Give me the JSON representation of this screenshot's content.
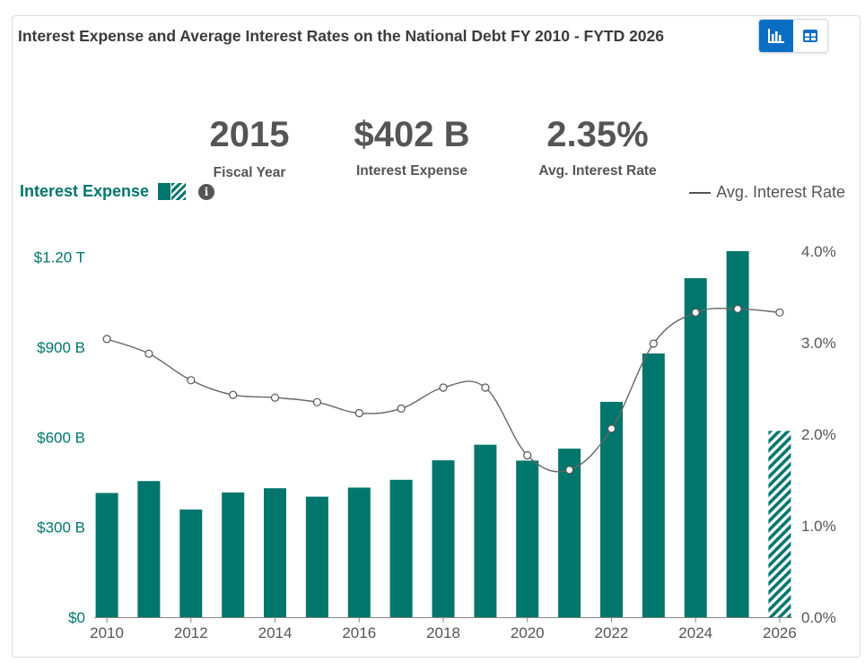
{
  "header": {
    "title": "Interest Expense and Average Interest Rates on the National Debt FY 2010 - FYTD 2026",
    "view_toggle": [
      {
        "icon": "bar-chart-icon",
        "active": true
      },
      {
        "icon": "table-icon",
        "active": false
      }
    ]
  },
  "summary": {
    "year_value": "2015",
    "year_label": "Fiscal Year",
    "expense_value": "$402 B",
    "expense_label": "Interest Expense",
    "rate_value": "2.35%",
    "rate_label": "Avg. Interest Rate"
  },
  "legend": {
    "bars_label": "Interest Expense",
    "line_label": "Avg. Interest Rate",
    "info_icon": "info-icon"
  },
  "colors": {
    "bar": "#00766c",
    "line": "#666666",
    "left_axis_text": "#00766c",
    "right_axis_text": "#555555"
  },
  "chart_data": {
    "type": "bar",
    "x": [
      2010,
      2011,
      2012,
      2013,
      2014,
      2015,
      2016,
      2017,
      2018,
      2019,
      2020,
      2021,
      2022,
      2023,
      2024,
      2025,
      2026
    ],
    "x_tick_labels": [
      "2010",
      "2012",
      "2014",
      "2016",
      "2018",
      "2020",
      "2022",
      "2024",
      "2026"
    ],
    "series": [
      {
        "name": "Interest Expense",
        "axis": "left",
        "values": [
          414,
          454,
          359,
          416,
          430,
          402,
          432,
          458,
          523,
          575,
          522,
          562,
          718,
          879,
          1130,
          1220,
          621
        ],
        "hatched_years": [
          2026
        ]
      },
      {
        "name": "Avg. Interest Rate",
        "type": "line",
        "axis": "right",
        "values": [
          3.04,
          2.88,
          2.59,
          2.43,
          2.4,
          2.35,
          2.23,
          2.28,
          2.51,
          2.51,
          1.77,
          1.61,
          2.06,
          2.99,
          3.33,
          3.37,
          3.33
        ],
        "marker_years": [
          2010,
          2011,
          2012,
          2013,
          2014,
          2015,
          2016,
          2017,
          2018,
          2019,
          2020,
          2021,
          2022,
          2023,
          2024,
          2025,
          2026
        ]
      }
    ],
    "left_axis": {
      "ticks": [
        0,
        300,
        600,
        900,
        1200
      ],
      "tick_labels": [
        "$0",
        "$300 B",
        "$600 B",
        "$900 B",
        "$1.20 T"
      ],
      "ylim": [
        0,
        1220
      ]
    },
    "right_axis": {
      "ticks": [
        0,
        1,
        2,
        3,
        4
      ],
      "tick_labels": [
        "0.0%",
        "1.0%",
        "2.0%",
        "3.0%",
        "4.0%"
      ],
      "ylim": [
        0,
        4.0
      ]
    },
    "xlim": [
      2009.7,
      2026.3
    ],
    "grid": false,
    "legend": "top"
  }
}
